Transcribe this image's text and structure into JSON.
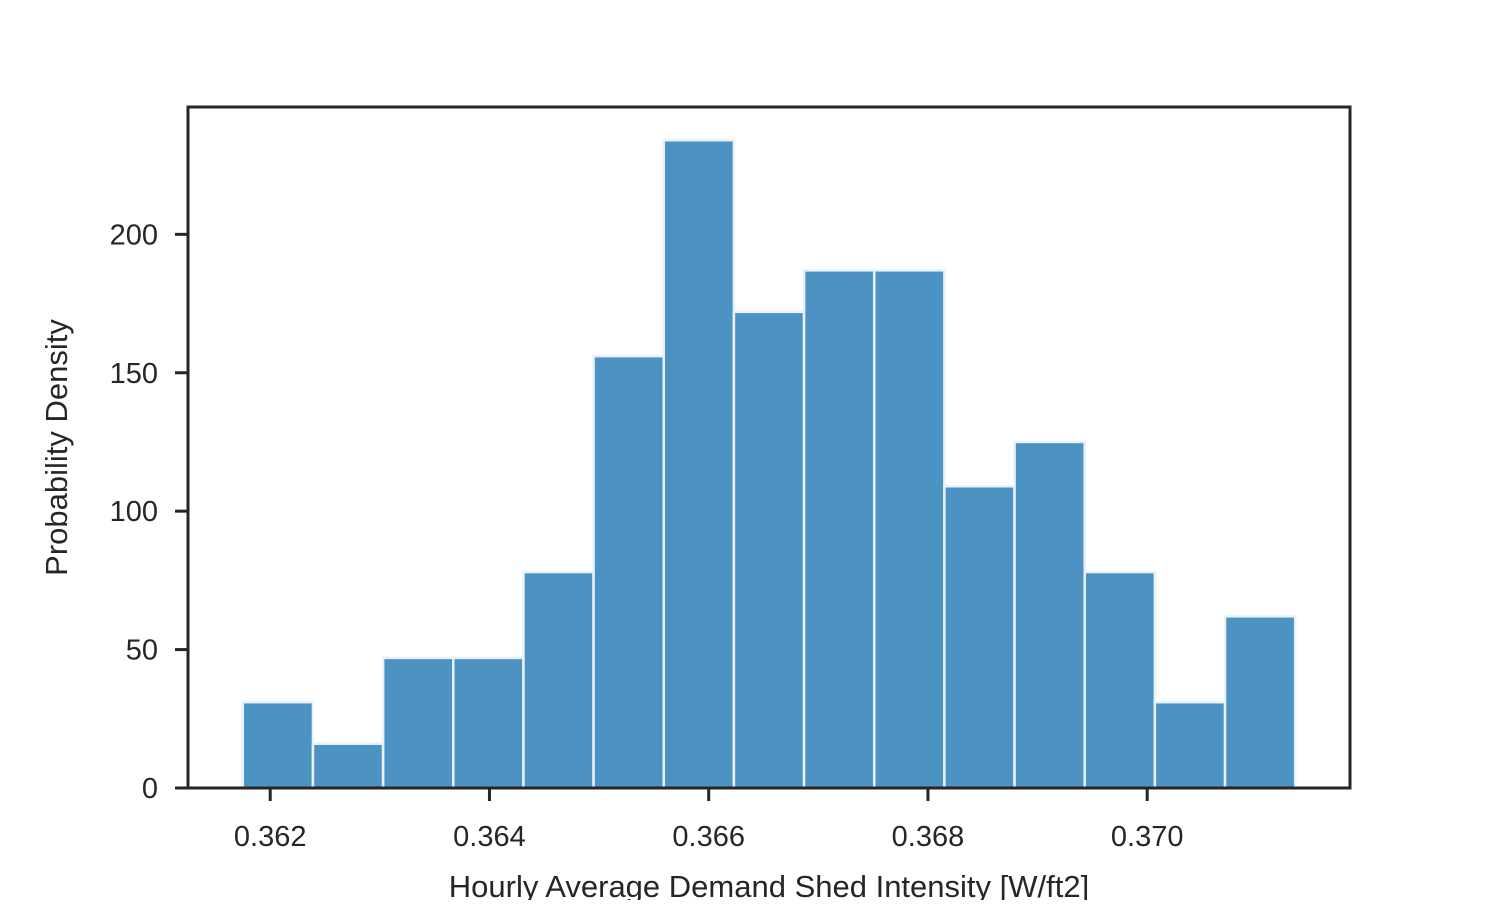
{
  "chart_data": {
    "type": "bar",
    "subtype": "histogram",
    "title": "",
    "xlabel": "Hourly Average Demand Shed Intensity [W/ft2]",
    "ylabel": "Probability Density",
    "bin_edges": [
      0.36175,
      0.36239,
      0.36303,
      0.36367,
      0.36431,
      0.36495,
      0.36559,
      0.36623,
      0.36687,
      0.36751,
      0.36815,
      0.36879,
      0.36943,
      0.37007,
      0.37071,
      0.37135
    ],
    "values": [
      31,
      16,
      47,
      47,
      78,
      156,
      234,
      172,
      187,
      187,
      109,
      125,
      78,
      31,
      62
    ],
    "xlim": [
      0.36125,
      0.37185
    ],
    "ylim": [
      0,
      246
    ],
    "xticks": [
      0.362,
      0.364,
      0.366,
      0.368,
      0.37
    ],
    "xtick_labels": [
      "0.362",
      "0.364",
      "0.366",
      "0.368",
      "0.370"
    ],
    "yticks": [
      0,
      50,
      100,
      150,
      200
    ],
    "ytick_labels": [
      "0",
      "50",
      "100",
      "150",
      "200"
    ],
    "bar_color": "#4c92c3",
    "edge_color": "#eaf2f8",
    "axis_color": "#262626",
    "grid": false,
    "legend": "none"
  }
}
